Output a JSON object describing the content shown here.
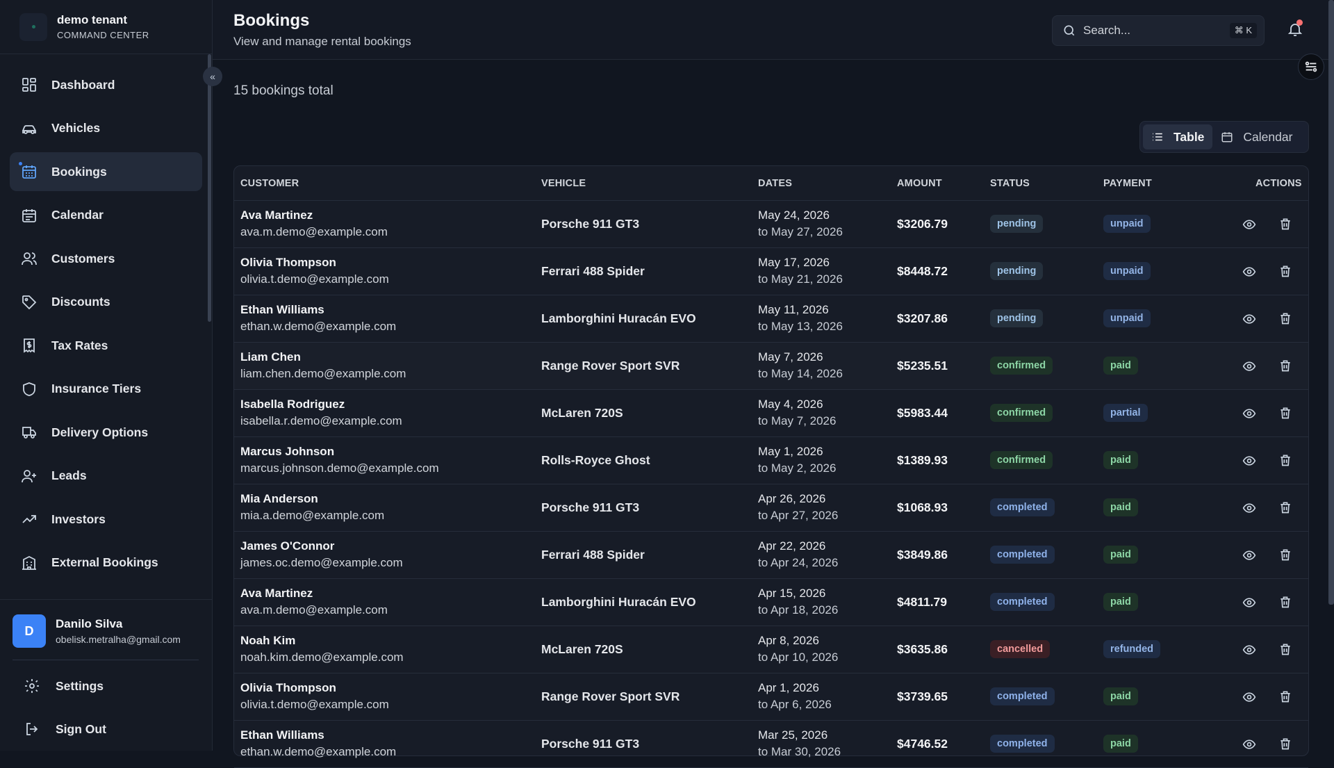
{
  "brand": {
    "title": "demo tenant",
    "subtitle": "COMMAND CENTER"
  },
  "sidebar": {
    "items": [
      {
        "label": "Dashboard",
        "icon": "grid-icon"
      },
      {
        "label": "Vehicles",
        "icon": "car-icon"
      },
      {
        "label": "Bookings",
        "icon": "calendar-grid-icon",
        "active": true
      },
      {
        "label": "Calendar",
        "icon": "calendar-icon"
      },
      {
        "label": "Customers",
        "icon": "users-icon"
      },
      {
        "label": "Discounts",
        "icon": "tag-icon"
      },
      {
        "label": "Tax Rates",
        "icon": "receipt-icon"
      },
      {
        "label": "Insurance Tiers",
        "icon": "shield-icon"
      },
      {
        "label": "Delivery Options",
        "icon": "truck-icon"
      },
      {
        "label": "Leads",
        "icon": "user-plus-icon"
      },
      {
        "label": "Investors",
        "icon": "trending-up-icon"
      },
      {
        "label": "External Bookings",
        "icon": "building-icon"
      }
    ],
    "user": {
      "initial": "D",
      "name": "Danilo Silva",
      "email": "obelisk.metralha@gmail.com"
    },
    "settings_label": "Settings",
    "signout_label": "Sign Out"
  },
  "header": {
    "title": "Bookings",
    "subtitle": "View and manage rental bookings",
    "search_placeholder": "Search...",
    "search_shortcut": "⌘ K"
  },
  "main": {
    "total_text": "15 bookings total",
    "view_toggle": {
      "table_label": "Table",
      "calendar_label": "Calendar",
      "active": "table"
    },
    "columns": [
      "CUSTOMER",
      "VEHICLE",
      "DATES",
      "AMOUNT",
      "STATUS",
      "PAYMENT",
      "ACTIONS"
    ],
    "rows": [
      {
        "name": "Ava Martinez",
        "email": "ava.m.demo@example.com",
        "vehicle": "Porsche 911 GT3",
        "from": "May 24, 2026",
        "to": "to May 27, 2026",
        "amount": "$3206.79",
        "status": "pending",
        "payment": "unpaid"
      },
      {
        "name": "Olivia Thompson",
        "email": "olivia.t.demo@example.com",
        "vehicle": "Ferrari 488 Spider",
        "from": "May 17, 2026",
        "to": "to May 21, 2026",
        "amount": "$8448.72",
        "status": "pending",
        "payment": "unpaid"
      },
      {
        "name": "Ethan Williams",
        "email": "ethan.w.demo@example.com",
        "vehicle": "Lamborghini Huracán EVO",
        "from": "May 11, 2026",
        "to": "to May 13, 2026",
        "amount": "$3207.86",
        "status": "pending",
        "payment": "unpaid"
      },
      {
        "name": "Liam Chen",
        "email": "liam.chen.demo@example.com",
        "vehicle": "Range Rover Sport SVR",
        "from": "May 7, 2026",
        "to": "to May 14, 2026",
        "amount": "$5235.51",
        "status": "confirmed",
        "payment": "paid"
      },
      {
        "name": "Isabella Rodriguez",
        "email": "isabella.r.demo@example.com",
        "vehicle": "McLaren 720S",
        "from": "May 4, 2026",
        "to": "to May 7, 2026",
        "amount": "$5983.44",
        "status": "confirmed",
        "payment": "partial"
      },
      {
        "name": "Marcus Johnson",
        "email": "marcus.johnson.demo@example.com",
        "vehicle": "Rolls-Royce Ghost",
        "from": "May 1, 2026",
        "to": "to May 2, 2026",
        "amount": "$1389.93",
        "status": "confirmed",
        "payment": "paid"
      },
      {
        "name": "Mia Anderson",
        "email": "mia.a.demo@example.com",
        "vehicle": "Porsche 911 GT3",
        "from": "Apr 26, 2026",
        "to": "to Apr 27, 2026",
        "amount": "$1068.93",
        "status": "completed",
        "payment": "paid"
      },
      {
        "name": "James O'Connor",
        "email": "james.oc.demo@example.com",
        "vehicle": "Ferrari 488 Spider",
        "from": "Apr 22, 2026",
        "to": "to Apr 24, 2026",
        "amount": "$3849.86",
        "status": "completed",
        "payment": "paid"
      },
      {
        "name": "Ava Martinez",
        "email": "ava.m.demo@example.com",
        "vehicle": "Lamborghini Huracán EVO",
        "from": "Apr 15, 2026",
        "to": "to Apr 18, 2026",
        "amount": "$4811.79",
        "status": "completed",
        "payment": "paid"
      },
      {
        "name": "Noah Kim",
        "email": "noah.kim.demo@example.com",
        "vehicle": "McLaren 720S",
        "from": "Apr 8, 2026",
        "to": "to Apr 10, 2026",
        "amount": "$3635.86",
        "status": "cancelled",
        "payment": "refunded"
      },
      {
        "name": "Olivia Thompson",
        "email": "olivia.t.demo@example.com",
        "vehicle": "Range Rover Sport SVR",
        "from": "Apr 1, 2026",
        "to": "to Apr 6, 2026",
        "amount": "$3739.65",
        "status": "completed",
        "payment": "paid"
      },
      {
        "name": "Ethan Williams",
        "email": "ethan.w.demo@example.com",
        "vehicle": "Porsche 911 GT3",
        "from": "Mar 25, 2026",
        "to": "to Mar 30, 2026",
        "amount": "$4746.52",
        "status": "completed",
        "payment": "paid"
      }
    ]
  }
}
